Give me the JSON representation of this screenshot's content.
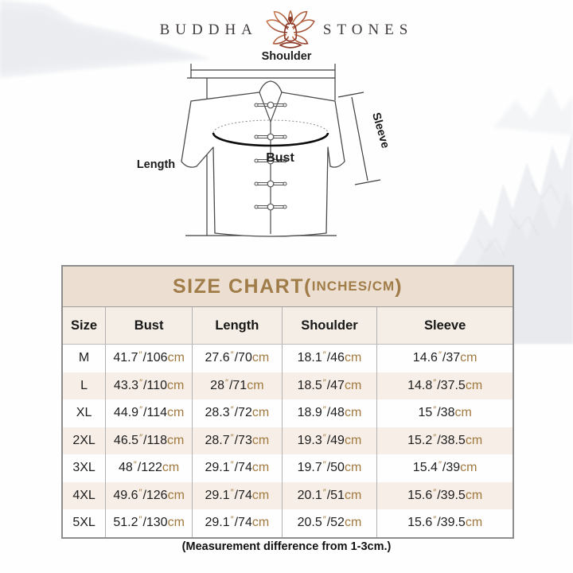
{
  "logo": {
    "left": "BUDDHA",
    "right": "STONES"
  },
  "diagram": {
    "labels": {
      "shoulder": "Shoulder",
      "length": "Length",
      "sleeve": "Sleeve",
      "bust": "Bust"
    }
  },
  "chart_data": {
    "type": "table",
    "title": {
      "main": "SIZE CHART(",
      "sub": "INCHES/CM",
      "close": ")"
    },
    "columns": [
      "Size",
      "Bust",
      "Length",
      "Shoulder",
      "Sleeve"
    ],
    "unit_symbols": {
      "inches": "″",
      "cm": "cm"
    },
    "rows": [
      {
        "size": "M",
        "bust": {
          "in": "41.7",
          "cm": "106"
        },
        "length": {
          "in": "27.6",
          "cm": "70"
        },
        "shoulder": {
          "in": "18.1",
          "cm": "46"
        },
        "sleeve": {
          "in": "14.6",
          "cm": "37"
        }
      },
      {
        "size": "L",
        "bust": {
          "in": "43.3",
          "cm": "110"
        },
        "length": {
          "in": "28",
          "cm": "71"
        },
        "shoulder": {
          "in": "18.5",
          "cm": "47"
        },
        "sleeve": {
          "in": "14.8",
          "cm": "37.5"
        }
      },
      {
        "size": "XL",
        "bust": {
          "in": "44.9",
          "cm": "114"
        },
        "length": {
          "in": "28.3",
          "cm": "72"
        },
        "shoulder": {
          "in": "18.9",
          "cm": "48"
        },
        "sleeve": {
          "in": "15",
          "cm": "38"
        }
      },
      {
        "size": "2XL",
        "bust": {
          "in": "46.5",
          "cm": "118"
        },
        "length": {
          "in": "28.7",
          "cm": "73"
        },
        "shoulder": {
          "in": "19.3",
          "cm": "49"
        },
        "sleeve": {
          "in": "15.2",
          "cm": "38.5"
        }
      },
      {
        "size": "3XL",
        "bust": {
          "in": "48",
          "cm": "122"
        },
        "length": {
          "in": "29.1",
          "cm": "74"
        },
        "shoulder": {
          "in": "19.7",
          "cm": "50"
        },
        "sleeve": {
          "in": "15.4",
          "cm": "39"
        }
      },
      {
        "size": "4XL",
        "bust": {
          "in": "49.6",
          "cm": "126"
        },
        "length": {
          "in": "29.1",
          "cm": "74"
        },
        "shoulder": {
          "in": "20.1",
          "cm": "51"
        },
        "sleeve": {
          "in": "15.6",
          "cm": "39.5"
        }
      },
      {
        "size": "5XL",
        "bust": {
          "in": "51.2",
          "cm": "130"
        },
        "length": {
          "in": "29.1",
          "cm": "74"
        },
        "shoulder": {
          "in": "20.5",
          "cm": "52"
        },
        "sleeve": {
          "in": "15.6",
          "cm": "39.5"
        }
      }
    ]
  },
  "footer": {
    "note": "(Measurement difference from 1-3cm.)"
  },
  "colors": {
    "accent_gold": "#a07c48",
    "unit_brown": "#a1793f",
    "title_bar_bg": "#ecdfd2",
    "header_row_bg": "#f4eee6",
    "alt_row_bg": "#f7efe7",
    "logo_brown": "#8d3b2a",
    "logo_text": "#403c3c"
  }
}
